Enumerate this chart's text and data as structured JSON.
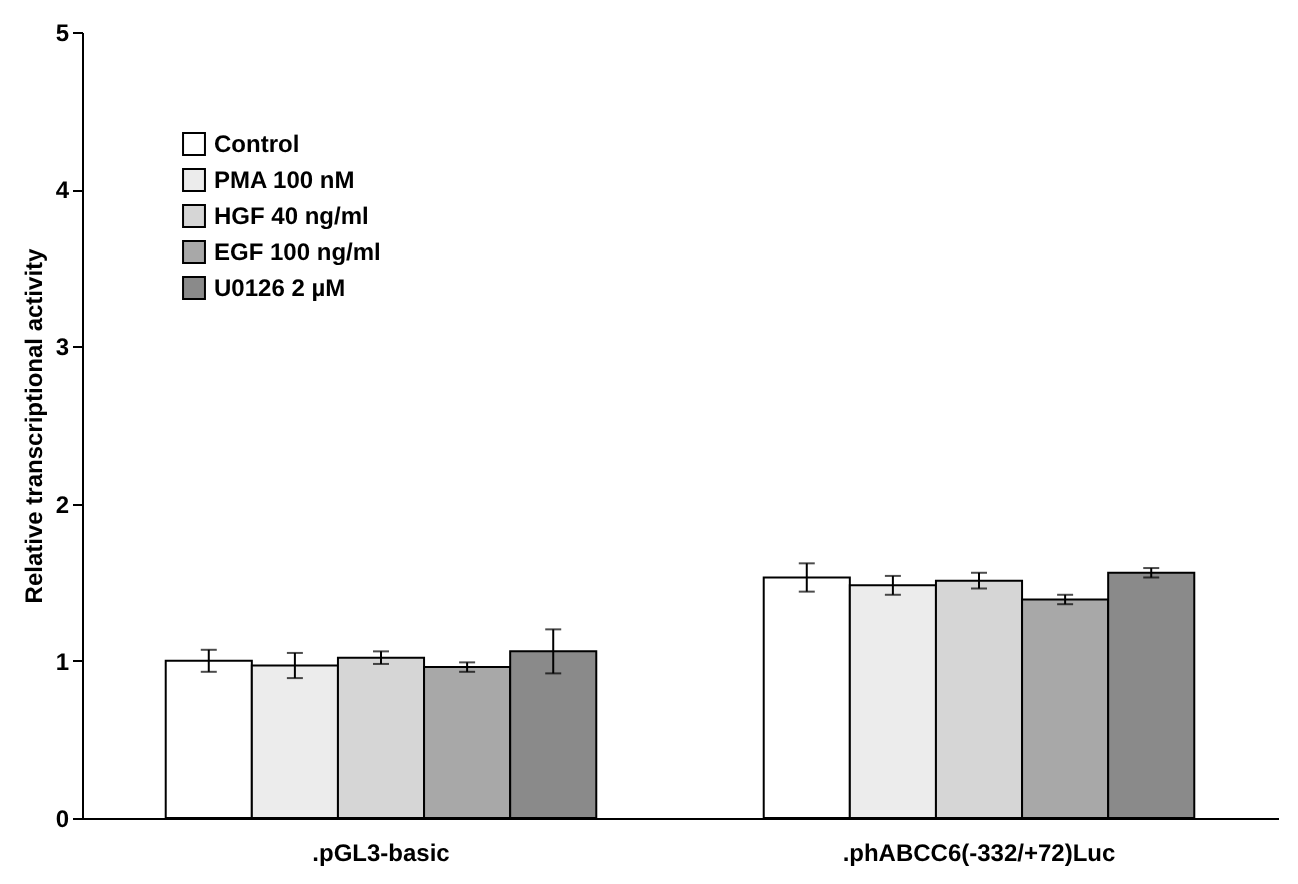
{
  "chart_data": {
    "type": "bar",
    "ylabel": "Relative transcriptional activity",
    "categories": [
      ".pGL3-basic",
      ".phABCC6(-332/+72)Luc"
    ],
    "series": [
      {
        "name": "Control",
        "color": "#ffffff",
        "values": [
          1.0,
          1.53
        ],
        "errors": [
          0.07,
          0.09
        ]
      },
      {
        "name": "PMA 100 nM",
        "color": "#ececec",
        "values": [
          0.97,
          1.48
        ],
        "errors": [
          0.08,
          0.06
        ]
      },
      {
        "name": "HGF 40 ng/ml",
        "color": "#d6d6d6",
        "values": [
          1.02,
          1.51
        ],
        "errors": [
          0.04,
          0.05
        ]
      },
      {
        "name": "EGF 100 ng/ml",
        "color": "#a8a8a8",
        "values": [
          0.96,
          1.39
        ],
        "errors": [
          0.03,
          0.03
        ]
      },
      {
        "name": "U0126 2 µM",
        "color": "#8a8a8a",
        "values": [
          1.06,
          1.56
        ],
        "errors": [
          0.14,
          0.03
        ]
      }
    ],
    "ylim": [
      0,
      5
    ],
    "yticks": [
      0,
      1,
      2,
      3,
      4,
      5
    ],
    "grid": false,
    "legend": "top left"
  }
}
